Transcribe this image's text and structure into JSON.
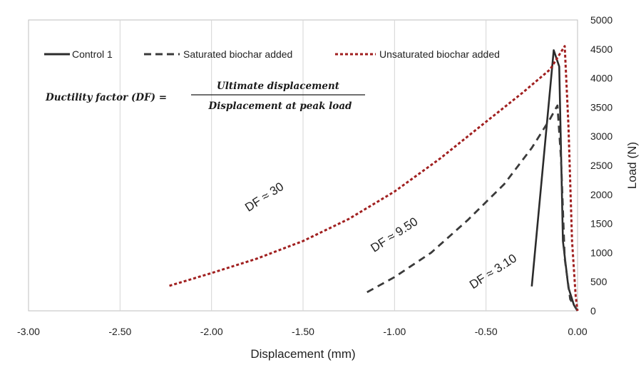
{
  "chart_data": {
    "type": "line",
    "xlabel": "Displacement (mm)",
    "ylabel": "Load (N)",
    "xlim": [
      -3.0,
      0.0
    ],
    "ylim": [
      0,
      5000
    ],
    "x_ticks": [
      "-3.00",
      "-2.50",
      "-2.00",
      "-1.50",
      "-1.00",
      "-0.50",
      "0.00"
    ],
    "y_ticks": [
      "0",
      "500",
      "1000",
      "1500",
      "2000",
      "2500",
      "3000",
      "3500",
      "4000",
      "4500",
      "5000"
    ],
    "grid": "vertical",
    "legend_position": "top",
    "series": [
      {
        "name": "Control 1",
        "color": "#2b2b2b",
        "style": "solid",
        "points": [
          [
            -0.25,
            420
          ],
          [
            -0.13,
            4480
          ],
          [
            -0.1,
            4200
          ],
          [
            -0.08,
            1200
          ],
          [
            -0.05,
            400
          ],
          [
            -0.02,
            100
          ],
          [
            0.0,
            0
          ]
        ]
      },
      {
        "name": "Saturated biochar added",
        "color": "#3a3a3a",
        "style": "dashed",
        "points": [
          [
            -1.15,
            320
          ],
          [
            -1.0,
            580
          ],
          [
            -0.8,
            1000
          ],
          [
            -0.6,
            1560
          ],
          [
            -0.4,
            2180
          ],
          [
            -0.25,
            2800
          ],
          [
            -0.15,
            3300
          ],
          [
            -0.11,
            3530
          ],
          [
            -0.09,
            2600
          ],
          [
            -0.07,
            900
          ],
          [
            -0.04,
            200
          ],
          [
            0.0,
            0
          ]
        ]
      },
      {
        "name": "Unsaturated biochar added",
        "color": "#a01f1f",
        "style": "dotted",
        "points": [
          [
            -2.23,
            430
          ],
          [
            -2.0,
            650
          ],
          [
            -1.75,
            900
          ],
          [
            -1.5,
            1200
          ],
          [
            -1.25,
            1580
          ],
          [
            -1.0,
            2050
          ],
          [
            -0.75,
            2620
          ],
          [
            -0.5,
            3250
          ],
          [
            -0.3,
            3750
          ],
          [
            -0.15,
            4150
          ],
          [
            -0.07,
            4550
          ],
          [
            -0.05,
            3200
          ],
          [
            -0.03,
            1200
          ],
          [
            -0.01,
            250
          ],
          [
            0.0,
            0
          ]
        ]
      }
    ],
    "annotations": [
      {
        "text": "DF ≈ 30",
        "x": -1.7,
        "y": 1900
      },
      {
        "text": "DF ≈ 9.50",
        "x": -0.99,
        "y": 1250
      },
      {
        "text": "DF ≈ 3.10",
        "x": -0.45,
        "y": 620
      }
    ],
    "formula": {
      "lhs": "Ductility factor (DF) =",
      "numerator": "Ultimate displacement",
      "denominator": "Displacement at peak load"
    }
  }
}
